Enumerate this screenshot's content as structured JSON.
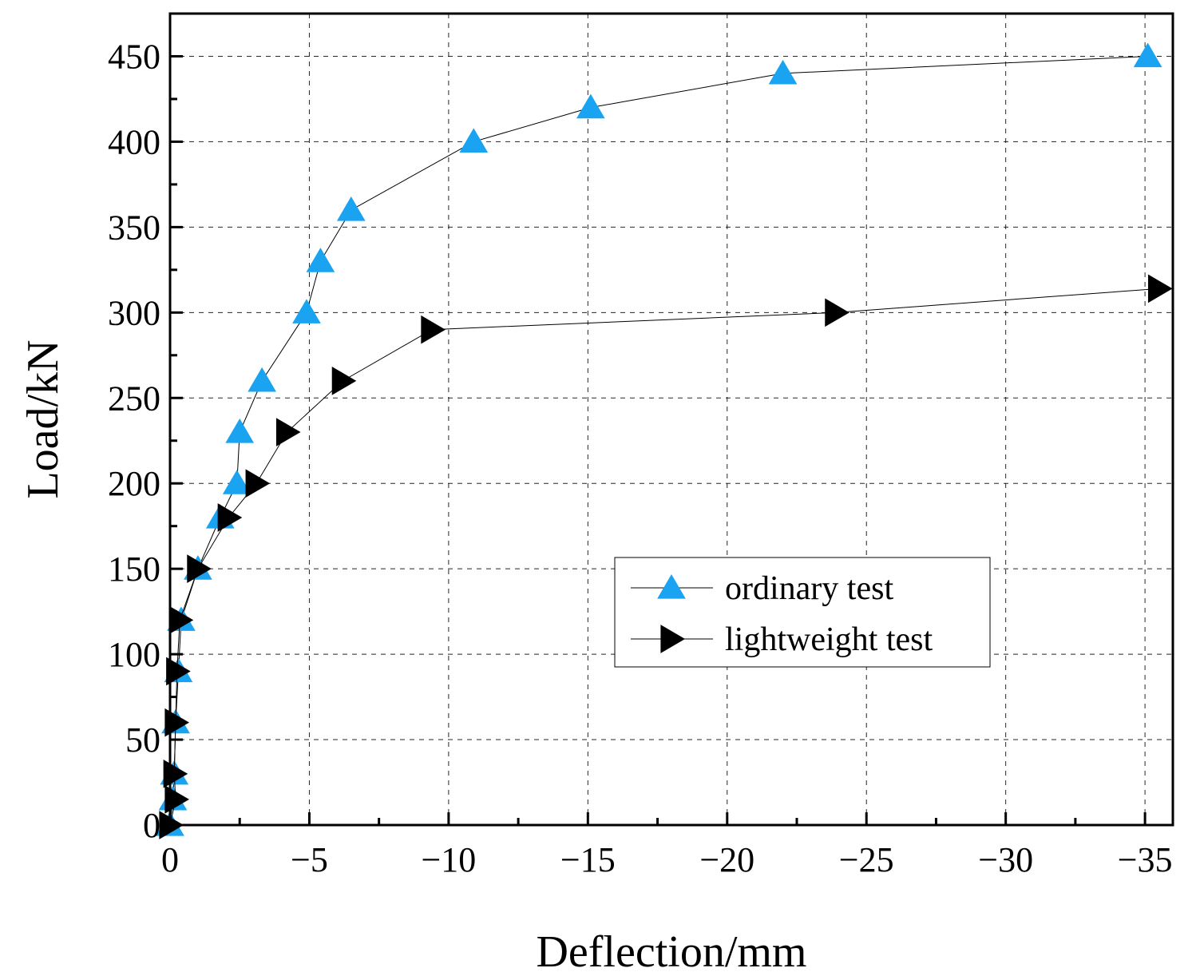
{
  "chart_data": {
    "type": "line",
    "xlabel": "Deflection/mm",
    "ylabel": "Load/kN",
    "xlim": [
      0,
      -36
    ],
    "ylim": [
      0,
      475
    ],
    "xticks": [
      0,
      -5,
      -10,
      -15,
      -20,
      -25,
      -30,
      -35
    ],
    "xtick_labels": [
      "0",
      "−5",
      "−10",
      "−15",
      "−20",
      "−25",
      "−30",
      "−35"
    ],
    "yticks": [
      0,
      50,
      100,
      150,
      200,
      250,
      300,
      350,
      400,
      450
    ],
    "ytick_labels": [
      "0",
      "50",
      "100",
      "150",
      "200",
      "250",
      "300",
      "350",
      "400",
      "450"
    ],
    "grid": true,
    "legend_position": "center-right",
    "series": [
      {
        "name": "ordinary test",
        "marker": "triangle-up",
        "color": "#1aa3f0",
        "x": [
          0,
          -0.1,
          -0.15,
          -0.2,
          -0.3,
          -0.4,
          -1.0,
          -1.8,
          -2.4,
          -2.5,
          -3.3,
          -4.9,
          -5.4,
          -6.5,
          -10.9,
          -15.1,
          -22.0,
          -35.1
        ],
        "y": [
          0,
          15,
          30,
          60,
          90,
          120,
          150,
          180,
          200,
          230,
          260,
          300,
          330,
          360,
          400,
          420,
          440,
          450
        ]
      },
      {
        "name": "lightweight test",
        "marker": "triangle-right",
        "color": "#000000",
        "x": [
          0,
          -0.2,
          -0.15,
          -0.2,
          -0.25,
          -0.35,
          -1.0,
          -2.1,
          -3.1,
          -4.2,
          -6.2,
          -9.4,
          -23.9,
          -35.5
        ],
        "y": [
          0,
          15,
          30,
          60,
          90,
          120,
          150,
          180,
          200,
          230,
          260,
          290,
          300,
          314
        ]
      }
    ]
  }
}
